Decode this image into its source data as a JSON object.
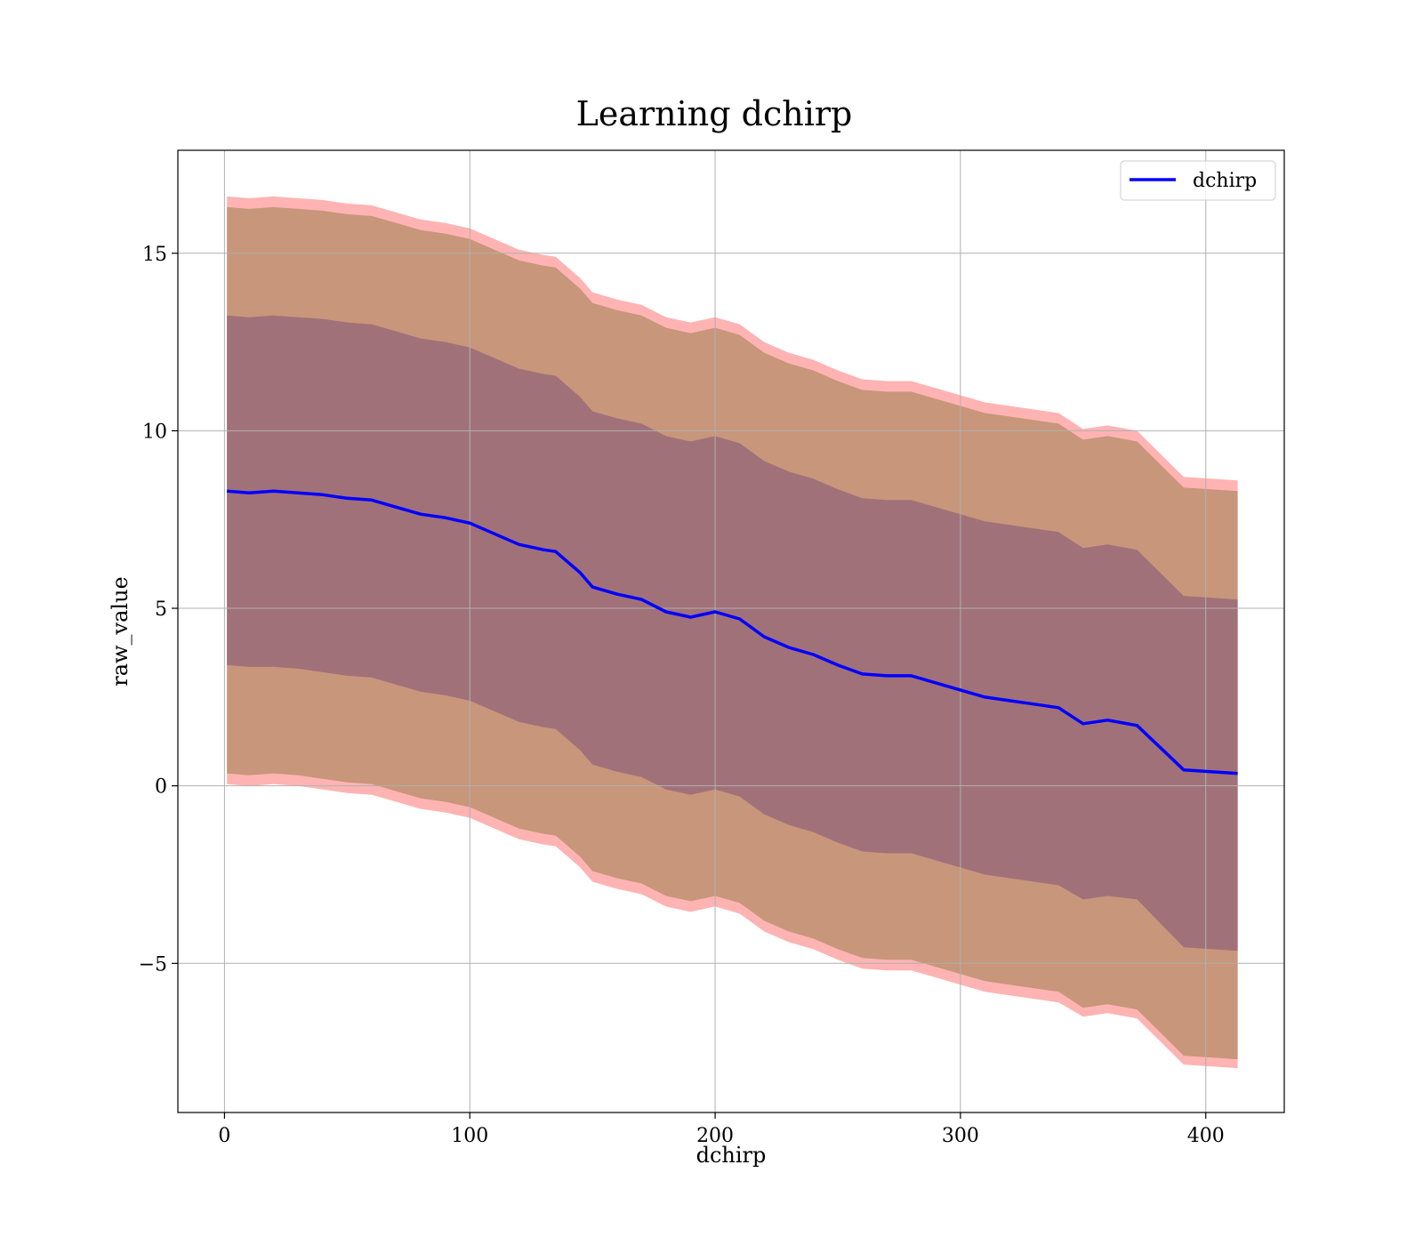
{
  "chart_data": {
    "type": "area",
    "title": "Learning dchirp",
    "xlabel": "dchirp",
    "ylabel": "raw_value",
    "xlim": [
      -19,
      432
    ],
    "ylim": [
      -9.2,
      17.9
    ],
    "xticks": [
      0,
      100,
      200,
      300,
      400
    ],
    "yticks": [
      -5,
      0,
      5,
      10,
      15
    ],
    "xtick_labels": [
      "0",
      "100",
      "200",
      "300",
      "400"
    ],
    "ytick_labels": [
      "−5",
      "0",
      "5",
      "10",
      "15"
    ],
    "grid": true,
    "legend": {
      "position": "top-right",
      "entries": [
        "dchirp"
      ]
    },
    "colors": {
      "line": "#0000ff",
      "band_outer": "#ff8080",
      "band_middle": "#c8967a",
      "band_inner": "#a1717a",
      "grid": "#b0b0b0"
    },
    "x": [
      1,
      10,
      20,
      30,
      40,
      50,
      60,
      70,
      80,
      90,
      100,
      110,
      120,
      130,
      135,
      145,
      150,
      160,
      170,
      180,
      190,
      200,
      210,
      220,
      230,
      240,
      250,
      260,
      270,
      280,
      290,
      300,
      310,
      320,
      330,
      340,
      350,
      360,
      372,
      391,
      413
    ],
    "series": [
      {
        "name": "dchirp",
        "role": "mean",
        "values": [
          8.3,
          8.25,
          8.3,
          8.25,
          8.2,
          8.1,
          8.05,
          7.85,
          7.65,
          7.55,
          7.4,
          7.1,
          6.8,
          6.65,
          6.6,
          6.0,
          5.6,
          5.4,
          5.25,
          4.9,
          4.75,
          4.9,
          4.7,
          4.2,
          3.9,
          3.7,
          3.4,
          3.15,
          3.1,
          3.1,
          2.9,
          2.7,
          2.5,
          2.4,
          2.3,
          2.2,
          1.75,
          1.85,
          1.7,
          0.45,
          0.35
        ]
      },
      {
        "name": "",
        "role": "band",
        "lower": [
          3.4,
          3.35,
          3.35,
          3.3,
          3.2,
          3.1,
          3.05,
          2.85,
          2.65,
          2.55,
          2.4,
          2.1,
          1.8,
          1.65,
          1.6,
          1.0,
          0.6,
          0.4,
          0.25,
          -0.1,
          -0.25,
          -0.1,
          -0.3,
          -0.8,
          -1.1,
          -1.3,
          -1.6,
          -1.85,
          -1.9,
          -1.9,
          -2.1,
          -2.3,
          -2.5,
          -2.6,
          -2.7,
          -2.8,
          -3.2,
          -3.1,
          -3.2,
          -4.55,
          -4.65
        ],
        "upper": [
          13.25,
          13.2,
          13.25,
          13.2,
          13.15,
          13.05,
          13.0,
          12.8,
          12.6,
          12.5,
          12.35,
          12.05,
          11.75,
          11.6,
          11.55,
          10.95,
          10.55,
          10.35,
          10.2,
          9.85,
          9.7,
          9.85,
          9.65,
          9.15,
          8.85,
          8.65,
          8.35,
          8.1,
          8.05,
          8.05,
          7.85,
          7.65,
          7.45,
          7.35,
          7.25,
          7.15,
          6.7,
          6.8,
          6.65,
          5.35,
          5.25
        ]
      },
      {
        "name": "",
        "role": "band",
        "lower": [
          0.35,
          0.3,
          0.35,
          0.3,
          0.2,
          0.1,
          0.05,
          -0.15,
          -0.35,
          -0.45,
          -0.6,
          -0.9,
          -1.2,
          -1.35,
          -1.4,
          -2.0,
          -2.4,
          -2.6,
          -2.75,
          -3.1,
          -3.25,
          -3.1,
          -3.3,
          -3.8,
          -4.1,
          -4.3,
          -4.6,
          -4.85,
          -4.9,
          -4.9,
          -5.1,
          -5.3,
          -5.5,
          -5.6,
          -5.7,
          -5.8,
          -6.25,
          -6.15,
          -6.3,
          -7.6,
          -7.7
        ],
        "upper": [
          16.3,
          16.25,
          16.3,
          16.25,
          16.2,
          16.1,
          16.05,
          15.85,
          15.65,
          15.55,
          15.4,
          15.1,
          14.8,
          14.65,
          14.6,
          14.0,
          13.6,
          13.4,
          13.25,
          12.9,
          12.75,
          12.9,
          12.7,
          12.2,
          11.9,
          11.7,
          11.4,
          11.15,
          11.1,
          11.1,
          10.9,
          10.7,
          10.5,
          10.4,
          10.3,
          10.2,
          9.75,
          9.85,
          9.7,
          8.4,
          8.3
        ]
      },
      {
        "name": "",
        "role": "band",
        "lower": [
          0.05,
          0.0,
          0.05,
          0.0,
          -0.1,
          -0.2,
          -0.25,
          -0.45,
          -0.65,
          -0.75,
          -0.9,
          -1.2,
          -1.5,
          -1.65,
          -1.7,
          -2.3,
          -2.7,
          -2.9,
          -3.05,
          -3.4,
          -3.55,
          -3.4,
          -3.6,
          -4.1,
          -4.4,
          -4.6,
          -4.9,
          -5.15,
          -5.2,
          -5.2,
          -5.4,
          -5.6,
          -5.8,
          -5.9,
          -6.0,
          -6.1,
          -6.5,
          -6.4,
          -6.55,
          -7.85,
          -7.95
        ],
        "upper": [
          16.6,
          16.55,
          16.6,
          16.55,
          16.5,
          16.4,
          16.35,
          16.15,
          15.95,
          15.85,
          15.7,
          15.4,
          15.1,
          14.95,
          14.9,
          14.3,
          13.9,
          13.7,
          13.55,
          13.2,
          13.05,
          13.2,
          13.0,
          12.5,
          12.2,
          12.0,
          11.7,
          11.45,
          11.4,
          11.4,
          11.2,
          11.0,
          10.8,
          10.7,
          10.6,
          10.5,
          10.05,
          10.15,
          10.0,
          8.7,
          8.6
        ]
      }
    ]
  }
}
